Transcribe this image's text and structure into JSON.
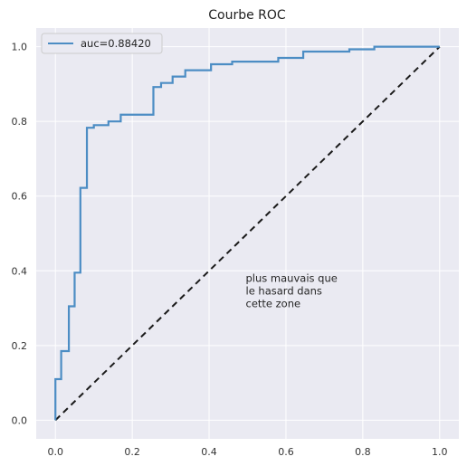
{
  "chart_data": {
    "type": "line",
    "title": "Courbe ROC",
    "xlabel": "",
    "ylabel": "",
    "xlim": [
      -0.05,
      1.05
    ],
    "ylim": [
      -0.05,
      1.05
    ],
    "xticks": [
      0.0,
      0.2,
      0.4,
      0.6,
      0.8,
      1.0
    ],
    "yticks": [
      0.0,
      0.2,
      0.4,
      0.6,
      0.8,
      1.0
    ],
    "xtick_labels": [
      "0.0",
      "0.2",
      "0.4",
      "0.6",
      "0.8",
      "1.0"
    ],
    "ytick_labels": [
      "0.0",
      "0.2",
      "0.4",
      "0.6",
      "0.8",
      "1.0"
    ],
    "grid": true,
    "legend_position": "top-left",
    "colors": {
      "background": "#eaeaf2",
      "grid": "#ffffff",
      "roc": "#4c8dc4",
      "diagonal": "#1a1a1a"
    },
    "series": [
      {
        "name": "auc=0.88420",
        "style": "solid",
        "x": [
          0.0,
          0.0,
          0.015,
          0.015,
          0.035,
          0.035,
          0.05,
          0.05,
          0.065,
          0.065,
          0.082,
          0.082,
          0.1,
          0.1,
          0.138,
          0.138,
          0.17,
          0.17,
          0.255,
          0.255,
          0.275,
          0.275,
          0.305,
          0.305,
          0.338,
          0.338,
          0.405,
          0.405,
          0.46,
          0.46,
          0.58,
          0.58,
          0.645,
          0.645,
          0.765,
          0.765,
          0.83,
          0.83,
          1.0
        ],
        "y": [
          0.0,
          0.11,
          0.11,
          0.185,
          0.185,
          0.305,
          0.305,
          0.395,
          0.395,
          0.622,
          0.622,
          0.783,
          0.783,
          0.79,
          0.79,
          0.8,
          0.8,
          0.818,
          0.818,
          0.892,
          0.892,
          0.903,
          0.903,
          0.92,
          0.92,
          0.937,
          0.937,
          0.953,
          0.953,
          0.96,
          0.96,
          0.97,
          0.97,
          0.987,
          0.987,
          0.993,
          0.993,
          1.0,
          1.0
        ]
      },
      {
        "style": "dashed",
        "x": [
          0.0,
          1.0
        ],
        "y": [
          0.0,
          1.0
        ]
      }
    ],
    "annotation": {
      "lines": [
        "plus mauvais que",
        "le hasard dans",
        "cette zone"
      ],
      "x": 0.5,
      "y": 0.37
    }
  }
}
